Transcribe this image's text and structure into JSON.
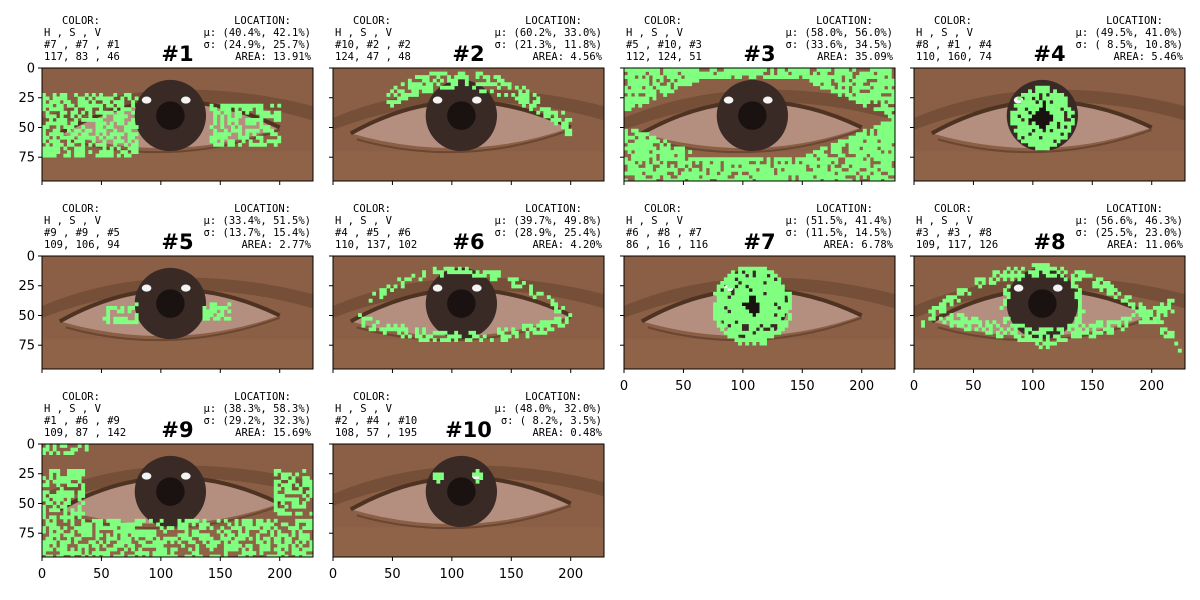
{
  "chart_data": {
    "type": "image-grid",
    "grid": {
      "rows": 3,
      "cols": 4
    },
    "image_extent": {
      "xlim": [
        0,
        228
      ],
      "ylim": [
        95,
        0
      ]
    },
    "xticks": [
      0,
      50,
      100,
      150,
      200
    ],
    "yticks": [
      0,
      25,
      50,
      75
    ],
    "xtick_labels": [
      "0",
      "50",
      "100",
      "150",
      "200"
    ],
    "ytick_labels": [
      "0",
      "25",
      "50",
      "75"
    ],
    "mask_color": "#80ff80",
    "colors": {
      "background": "#ffffff",
      "skin": "#8a5f45",
      "skin_dark": "#6e4a33",
      "lid_crease": "#4f3322",
      "sclera": "#b48f80",
      "iris": "#3a2a26",
      "pupil": "#1a1210",
      "highlight": "#f4f4f4",
      "mask": "#80ff80"
    },
    "color_header": "COLOR:",
    "hsv_header": " H ,  S ,  V",
    "location_header": "LOCATION:",
    "panels": [
      {
        "title": "#1",
        "cluster": "#7 , #7 , #1",
        "color_value": "117, 83 , 46",
        "mu": "μ: (40.4%, 42.1%)",
        "sigma": "σ: (24.9%, 25.7%)",
        "area": "AREA: 13.91%",
        "mask_region": "lower-lid-and-corners"
      },
      {
        "title": "#2",
        "cluster": "#10, #2 , #2",
        "color_value": "124, 47 , 48",
        "mu": "μ: (60.2%, 33.0%)",
        "sigma": "σ: (21.3%, 11.8%)",
        "area": "AREA: 4.56%",
        "mask_region": "upper-lid-line"
      },
      {
        "title": "#3",
        "cluster": "#5 , #10, #3",
        "color_value": "112, 124, 51",
        "mu": "μ: (58.0%, 56.0%)",
        "sigma": "σ: (33.6%, 34.5%)",
        "area": "AREA: 35.09%",
        "mask_region": "surrounding-skin"
      },
      {
        "title": "#4",
        "cluster": "#8 , #1 , #4",
        "color_value": "110, 160, 74",
        "mu": "μ: (49.5%, 41.0%)",
        "sigma": "σ: ( 8.5%, 10.8%)",
        "area": "AREA: 5.46%",
        "mask_region": "iris"
      },
      {
        "title": "#5",
        "cluster": "#9 , #9 , #5",
        "color_value": "109, 106, 94",
        "mu": "μ: (33.4%, 51.5%)",
        "sigma": "σ: (13.7%, 15.4%)",
        "area": "AREA: 2.77%",
        "mask_region": "inner-sclera"
      },
      {
        "title": "#6",
        "cluster": "#4 , #5 , #6",
        "color_value": "110, 137, 102",
        "mu": "μ: (39.7%, 49.8%)",
        "sigma": "σ: (28.9%, 25.4%)",
        "area": "AREA: 4.20%",
        "mask_region": "lid-margins"
      },
      {
        "title": "#7",
        "cluster": "#6 , #8 , #7",
        "color_value": "86 , 16 , 116",
        "mu": "μ: (51.5%, 41.4%)",
        "sigma": "σ: (11.5%, 14.5%)",
        "area": "AREA: 6.78%",
        "mask_region": "iris-outer"
      },
      {
        "title": "#8",
        "cluster": "#3 , #3 , #8",
        "color_value": "109, 117, 126",
        "mu": "μ: (56.6%, 46.3%)",
        "sigma": "σ: (25.5%, 23.0%)",
        "area": "AREA: 11.06%",
        "mask_region": "eye-outline"
      },
      {
        "title": "#9",
        "cluster": "#1 , #6 , #9",
        "color_value": "109, 87 , 142",
        "mu": "μ: (38.3%, 58.3%)",
        "sigma": "σ: (29.2%, 32.3%)",
        "area": "AREA: 15.69%",
        "mask_region": "lower-skin-texture"
      },
      {
        "title": "#10",
        "cluster": "#2 , #4 , #10",
        "color_value": "108, 57 , 195",
        "mu": "μ: (48.0%, 32.0%)",
        "sigma": "σ: ( 8.2%,  3.5%)",
        "area": "AREA: 0.48%",
        "mask_region": "specular-highlights"
      }
    ]
  }
}
